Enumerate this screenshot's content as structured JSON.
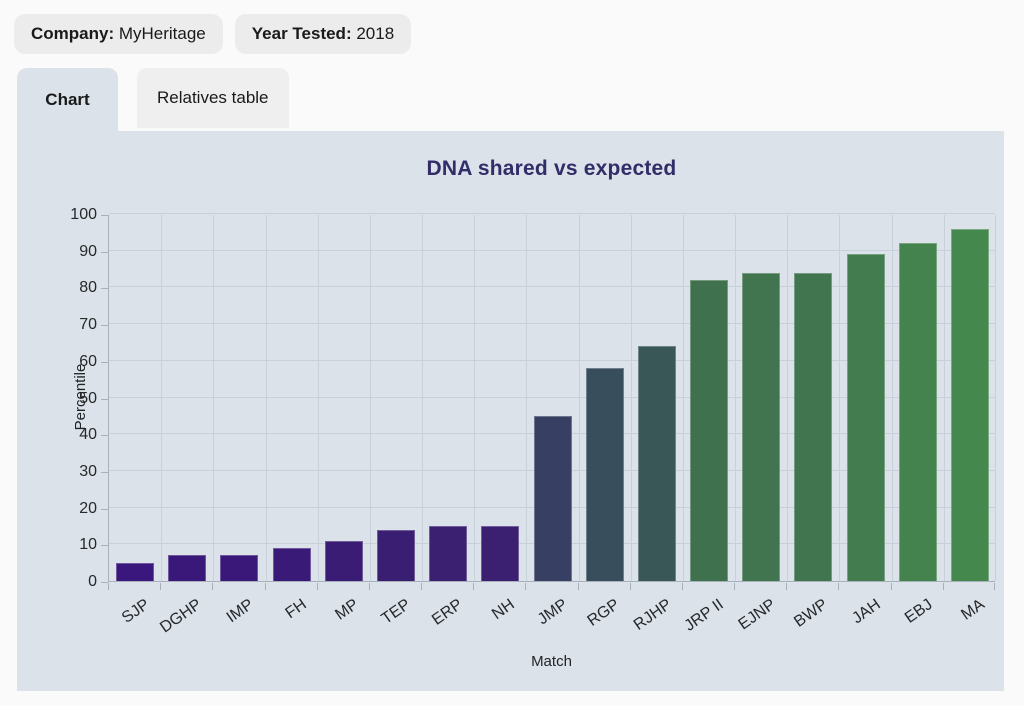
{
  "header": {
    "pills": [
      {
        "label": "Company:",
        "value": " MyHeritage"
      },
      {
        "label": "Year Tested:",
        "value": " 2018"
      }
    ]
  },
  "tabs": [
    {
      "label": "Chart",
      "active": true
    },
    {
      "label": "Relatives table",
      "active": false
    }
  ],
  "chart_data": {
    "type": "bar",
    "title": "DNA shared vs expected",
    "xlabel": "Match",
    "ylabel": "Percentile",
    "ylim": [
      0,
      100
    ],
    "ytick_step": 10,
    "grid": true,
    "legend": false,
    "categories": [
      "SJP",
      "DGHP",
      "IMP",
      "FH",
      "MP",
      "TEP",
      "ERP",
      "NH",
      "JMP",
      "RGP",
      "RJHP",
      "JRP II",
      "EJNP",
      "BWP",
      "JAH",
      "EBJ",
      "MA"
    ],
    "values": [
      5,
      7,
      7,
      9,
      11,
      14,
      15,
      15,
      45,
      58,
      64,
      82,
      84,
      84,
      89,
      92,
      96
    ],
    "bar_colors": [
      "#3a177c",
      "#3a187a",
      "#3a187a",
      "#3a1a77",
      "#3a1c74",
      "#3a1e71",
      "#3b1f70",
      "#3b1f70",
      "#373f63",
      "#394e5c",
      "#3a5758",
      "#40714f",
      "#41754f",
      "#41754f",
      "#437d4f",
      "#44824e",
      "#45884e"
    ],
    "colors": {
      "panel_bg": "#dbe2ea",
      "page_bg": "#fafafa",
      "pill_bg": "#ececec",
      "tab_active_bg": "#dbe2ea",
      "tab_inactive_bg": "#efeff0",
      "grid": "#c8d0d9",
      "axis": "#a7b1bb",
      "title": "#322c68",
      "tick_text": "#26282a"
    }
  }
}
